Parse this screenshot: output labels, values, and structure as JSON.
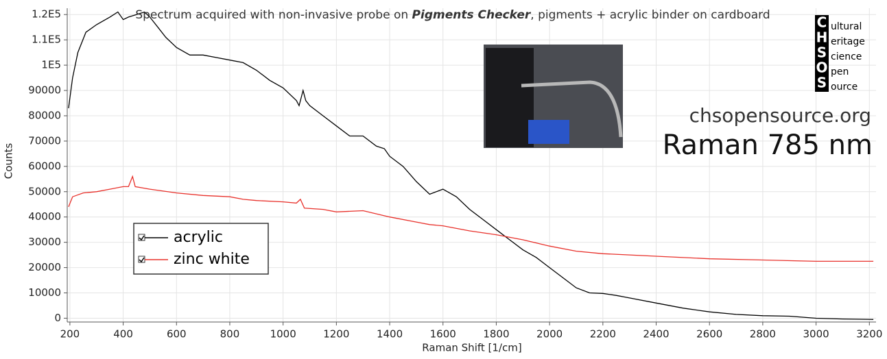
{
  "chart_data": {
    "type": "line",
    "title": [
      "Spectrum acquired with non-invasive probe on ",
      "Pigments Checker",
      ", pigments + acrylic binder on cardboard"
    ],
    "x_label": "Raman Shift [1/cm]",
    "y_label": "Counts",
    "website": "chsopensource.org",
    "subtitle": "Raman 785 nm",
    "logo": {
      "initials": [
        "C",
        "H",
        "S",
        "O",
        "S"
      ],
      "words": [
        "ultural",
        "eritage",
        "cience",
        "pen",
        "ource"
      ]
    },
    "xlim": [
      190,
      3225
    ],
    "ylim": [
      -1500,
      122500
    ],
    "xticks": [
      200,
      400,
      600,
      800,
      1000,
      1200,
      1400,
      1600,
      1800,
      2000,
      2200,
      2400,
      2600,
      2800,
      3000,
      3200
    ],
    "yticks": [
      0,
      10000,
      20000,
      30000,
      40000,
      50000,
      60000,
      70000,
      80000,
      90000,
      {
        "value": 100000,
        "label": "1E5"
      },
      {
        "value": 110000,
        "label": "1.1E5"
      },
      {
        "value": 120000,
        "label": "1.2E5"
      }
    ],
    "grid": true,
    "legend": "left",
    "series": [
      {
        "name": "acrylic",
        "color": "#000000",
        "x": [
          195,
          210,
          230,
          260,
          300,
          350,
          380,
          400,
          420,
          450,
          480,
          500,
          530,
          560,
          600,
          650,
          700,
          750,
          800,
          850,
          900,
          950,
          1000,
          1050,
          1060,
          1075,
          1085,
          1100,
          1150,
          1200,
          1250,
          1300,
          1350,
          1380,
          1400,
          1450,
          1500,
          1550,
          1600,
          1650,
          1700,
          1750,
          1800,
          1850,
          1900,
          1950,
          2000,
          2050,
          2100,
          2150,
          2200,
          2250,
          2300,
          2400,
          2500,
          2600,
          2700,
          2800,
          2900,
          3000,
          3100,
          3215
        ],
        "values": [
          83000,
          95000,
          105000,
          113000,
          116000,
          119000,
          121000,
          118000,
          119000,
          120000,
          121000,
          119000,
          115000,
          111000,
          107000,
          104000,
          104000,
          103000,
          102000,
          101000,
          98000,
          94000,
          91000,
          86000,
          84000,
          90000,
          86000,
          84000,
          80000,
          76000,
          72000,
          72000,
          68000,
          67000,
          64000,
          60000,
          54000,
          49000,
          51000,
          48000,
          43000,
          39000,
          35000,
          31000,
          27000,
          24000,
          20000,
          16000,
          12000,
          10000,
          9800,
          9000,
          8000,
          6000,
          4000,
          2500,
          1500,
          1000,
          800,
          0,
          -300,
          -500
        ]
      },
      {
        "name": "zinc white",
        "color": "#e8302a",
        "x": [
          195,
          210,
          250,
          300,
          350,
          400,
          420,
          435,
          445,
          500,
          600,
          700,
          800,
          850,
          900,
          1000,
          1050,
          1065,
          1080,
          1150,
          1200,
          1300,
          1400,
          1500,
          1550,
          1600,
          1700,
          1800,
          1900,
          2000,
          2100,
          2200,
          2400,
          2600,
          2800,
          3000,
          3215
        ],
        "values": [
          44000,
          48000,
          49500,
          50000,
          51000,
          52000,
          52000,
          56000,
          52000,
          51000,
          49500,
          48500,
          48000,
          47000,
          46500,
          46000,
          45500,
          47000,
          43500,
          43000,
          42000,
          42500,
          40000,
          38000,
          37000,
          36500,
          34500,
          33000,
          31000,
          28500,
          26500,
          25500,
          24500,
          23500,
          23000,
          22500,
          22500
        ]
      }
    ]
  }
}
